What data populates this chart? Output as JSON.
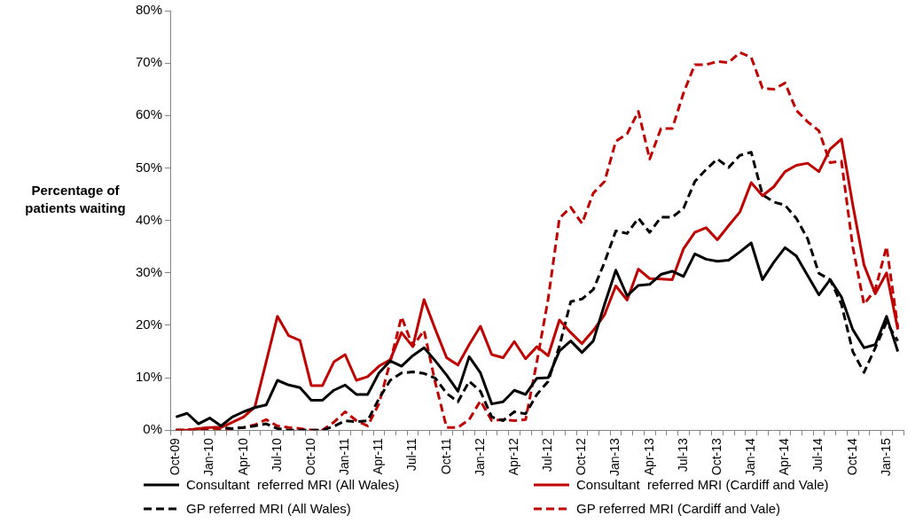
{
  "chart_data": {
    "type": "line",
    "ylabel": "Percentage of patients waiting",
    "categories": [
      "Oct-09",
      null,
      null,
      "Jan-10",
      null,
      null,
      "Apr-10",
      null,
      null,
      "Jul-10",
      null,
      null,
      "Oct-10",
      null,
      null,
      "Jan-11",
      null,
      null,
      "Apr-11",
      null,
      null,
      "Jul-11",
      null,
      null,
      "Oct-11",
      null,
      null,
      "Jan-12",
      null,
      null,
      "Apr-12",
      null,
      null,
      "Jul-12",
      null,
      null,
      "Oct-12",
      null,
      null,
      "Jan-13",
      null,
      null,
      "Apr-13",
      null,
      null,
      "Jul-13",
      null,
      null,
      "Oct-13",
      null,
      null,
      "Jan-14",
      null,
      null,
      "Apr-14",
      null,
      null,
      "Jul-14",
      null,
      null,
      "Oct-14",
      null,
      null,
      "Jan-15",
      null
    ],
    "ylim": [
      0,
      80
    ],
    "yticks": [
      {
        "value": 0,
        "label": "0%"
      },
      {
        "value": 10,
        "label": "10%"
      },
      {
        "value": 20,
        "label": "20%"
      },
      {
        "value": 30,
        "label": "30%"
      },
      {
        "value": 40,
        "label": "40%"
      },
      {
        "value": 50,
        "label": "50%"
      },
      {
        "value": 60,
        "label": "60%"
      },
      {
        "value": 70,
        "label": "70%"
      },
      {
        "value": 80,
        "label": "80%"
      }
    ],
    "grid": false,
    "legend": "bottom",
    "marker": "none",
    "series": [
      {
        "name": "Consultant  referred MRI (All Wales)",
        "color": "#000000",
        "line_style": "solid",
        "values": [
          2.5,
          3.2,
          1.2,
          2.3,
          0.8,
          2.5,
          3.5,
          4.3,
          4.8,
          9.5,
          8.6,
          8.1,
          5.7,
          5.7,
          7.6,
          8.6,
          6.8,
          6.8,
          10.9,
          13.2,
          12.2,
          14.2,
          15.7,
          13.2,
          10.5,
          7.4,
          14,
          10.9,
          5,
          5.4,
          7.6,
          6.8,
          9.9,
          10,
          15.1,
          17,
          14.8,
          17,
          24,
          30.5,
          25.6,
          27.6,
          27.8,
          29.7,
          30.3,
          29.3,
          33.6,
          32.6,
          32.2,
          32.4,
          34,
          35.7,
          28.7,
          32,
          34.8,
          33.2,
          29.5,
          25.8,
          28.7,
          25.4,
          19.2,
          15.7,
          16.3,
          21.7,
          15
        ]
      },
      {
        "name": "Consultant  referred MRI (Cardiff and Vale)",
        "color": "#c00000",
        "line_style": "solid",
        "values": [
          0,
          0,
          0.3,
          0.5,
          0.5,
          1.5,
          2.5,
          4.4,
          13,
          21.7,
          18,
          17.1,
          8.5,
          8.5,
          13,
          14.4,
          9.5,
          10.2,
          12.2,
          13.4,
          18.6,
          15.9,
          24.9,
          19.2,
          13.8,
          12.4,
          16.3,
          19.8,
          14.4,
          13.8,
          16.9,
          13.6,
          15.9,
          14.2,
          21,
          18.6,
          16.5,
          19,
          22,
          27.5,
          24.8,
          30.7,
          28.9,
          28.8,
          28.7,
          34.6,
          37.7,
          38.6,
          36.3,
          39,
          41.6,
          47.2,
          44.7,
          46.4,
          49.3,
          50.5,
          50.9,
          49.3,
          53.6,
          55.5,
          43,
          31.5,
          26,
          30,
          19.2
        ]
      },
      {
        "name": "GP referred MRI (All Wales)",
        "color": "#000000",
        "line_style": "dashed",
        "values": [
          0,
          0,
          0.2,
          0.5,
          0.5,
          0.3,
          0.5,
          0.8,
          1.2,
          0.3,
          0,
          0,
          0,
          0,
          0.7,
          1.8,
          1.6,
          1.8,
          6,
          9.5,
          10.9,
          11.1,
          10.8,
          9.9,
          7,
          5.4,
          9.3,
          7.4,
          2.5,
          1.8,
          3.5,
          3.1,
          6.8,
          9.3,
          16,
          24.5,
          25,
          26.8,
          32,
          38,
          37.5,
          40.4,
          37.7,
          40.6,
          40.6,
          42.3,
          47.4,
          49.7,
          51.7,
          50.1,
          52.4,
          53,
          44.9,
          43.5,
          42.9,
          40.4,
          36.5,
          29.9,
          28.7,
          24,
          15,
          11,
          15.7,
          20.6,
          17
        ]
      },
      {
        "name": "GP referred MRI (Cardiff and Vale)",
        "color": "#c00000",
        "line_style": "dashed",
        "values": [
          0,
          0,
          0,
          0,
          0,
          0.3,
          0.5,
          1,
          2,
          0.8,
          0.5,
          0.3,
          0,
          0,
          1.5,
          3.5,
          1.8,
          0.8,
          5,
          13,
          21.6,
          16,
          19,
          9,
          0.5,
          0.5,
          2,
          5.6,
          1.8,
          2,
          1.8,
          2,
          13,
          25,
          40.4,
          42.5,
          39.4,
          45.2,
          47.4,
          55.1,
          56.5,
          60.8,
          51.7,
          57.5,
          57.5,
          64.3,
          69.7,
          69.7,
          70.3,
          70.1,
          72,
          71.1,
          65.2,
          65,
          66.2,
          61,
          58.8,
          57.1,
          51,
          51.3,
          35,
          24,
          26.8,
          35,
          19.6
        ]
      }
    ]
  }
}
